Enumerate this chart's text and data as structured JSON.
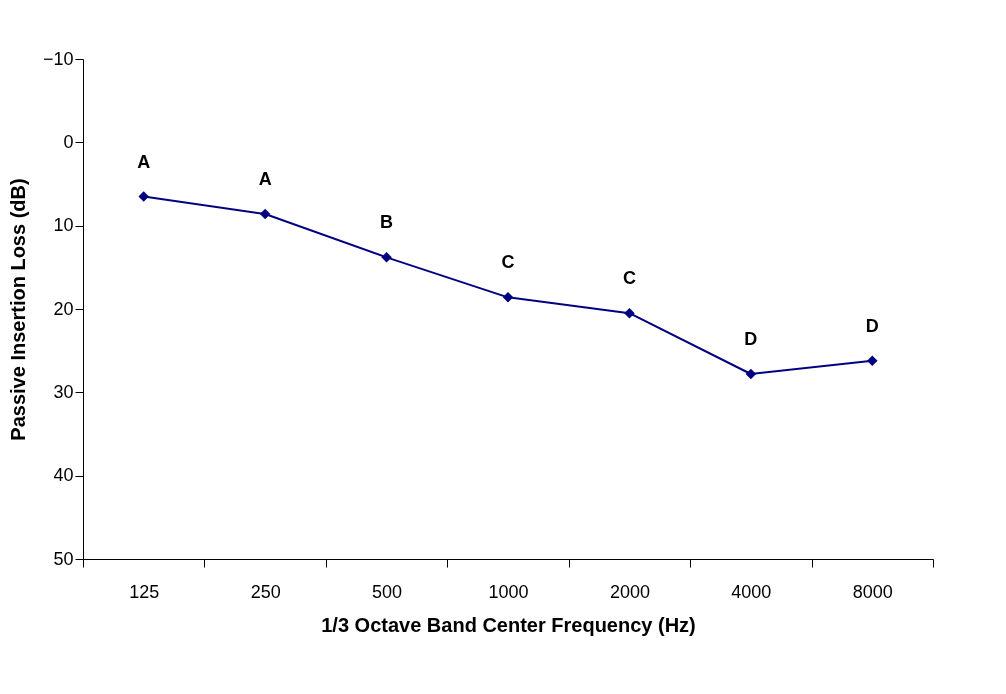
{
  "chart_data": {
    "type": "line",
    "xlabel": "1/3 Octave Band Center Frequency (Hz)",
    "ylabel": "Passive Insertion Loss (dB)",
    "categories": [
      "125",
      "250",
      "500",
      "1000",
      "2000",
      "4000",
      "8000"
    ],
    "series": [
      {
        "color": "#000080",
        "values": [
          6.5,
          8.6,
          13.8,
          18.6,
          20.5,
          27.8,
          26.2
        ]
      }
    ],
    "ylim": [
      50,
      -10
    ],
    "yticks": [
      -10,
      0,
      10,
      20,
      30,
      40,
      50
    ],
    "marker": "diamond",
    "line_style": "solid",
    "grid": false,
    "annotations": [
      {
        "text": "A",
        "x": "125",
        "y": 6.5
      },
      {
        "text": "A",
        "x": "250",
        "y": 8.6
      },
      {
        "text": "B",
        "x": "500",
        "y": 13.8
      },
      {
        "text": "C",
        "x": "1000",
        "y": 18.6
      },
      {
        "text": "C",
        "x": "2000",
        "y": 20.5
      },
      {
        "text": "D",
        "x": "4000",
        "y": 27.8
      },
      {
        "text": "D",
        "x": "8000",
        "y": 26.2
      }
    ]
  }
}
